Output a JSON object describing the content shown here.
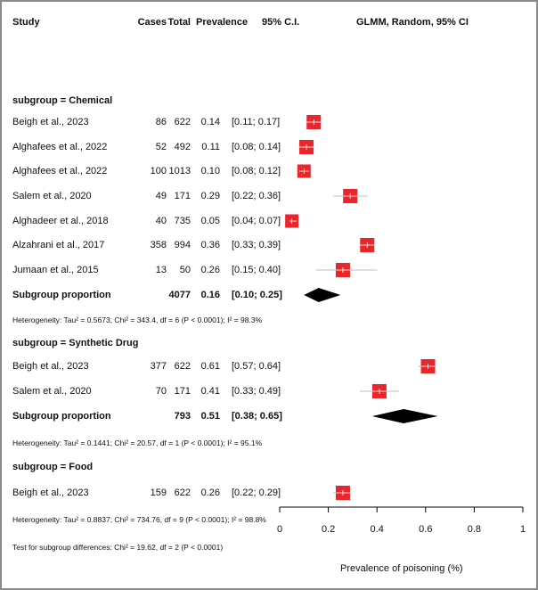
{
  "chart_data": {
    "type": "forest",
    "columns": [
      "Study",
      "Cases",
      "Total",
      "Prevalence",
      "95% C.I.",
      "GLMM, Random, 95% CI"
    ],
    "xlabel": "Prevalence of poisoning (%)",
    "xlim": [
      0,
      1
    ],
    "xticks": [
      "0",
      "0.2",
      "0.4",
      "0.6",
      "0.8",
      "1"
    ],
    "marker_color": "#e8262b",
    "subgroups": [
      {
        "label": "subgroup = Chemical",
        "studies": [
          {
            "study": "Beigh et al., 2023",
            "cases": "86",
            "total": "622",
            "prev": 0.14,
            "ci_text": "[0.11; 0.17]",
            "lo": 0.11,
            "hi": 0.17
          },
          {
            "study": "Alghafees et al., 2022",
            "cases": "52",
            "total": "492",
            "prev": 0.11,
            "ci_text": "[0.08; 0.14]",
            "lo": 0.08,
            "hi": 0.14
          },
          {
            "study": "Alghafees et al., 2022",
            "cases": "100",
            "total": "1013",
            "prev": 0.1,
            "ci_text": "[0.08; 0.12]",
            "lo": 0.08,
            "hi": 0.12
          },
          {
            "study": "Salem et al., 2020",
            "cases": "49",
            "total": "171",
            "prev": 0.29,
            "ci_text": "[0.22; 0.36]",
            "lo": 0.22,
            "hi": 0.36
          },
          {
            "study": "Alghadeer et al., 2018",
            "cases": "40",
            "total": "735",
            "prev": 0.05,
            "ci_text": "[0.04; 0.07]",
            "lo": 0.04,
            "hi": 0.07
          },
          {
            "study": "Alzahrani et al., 2017",
            "cases": "358",
            "total": "994",
            "prev": 0.36,
            "ci_text": "[0.33; 0.39]",
            "lo": 0.33,
            "hi": 0.39
          },
          {
            "study": "Jumaan et al., 2015",
            "cases": "13",
            "total": "50",
            "prev": 0.26,
            "ci_text": "[0.15; 0.40]",
            "lo": 0.15,
            "hi": 0.4
          }
        ],
        "pooled": {
          "label": "Subgroup proportion",
          "total": "4077",
          "prev": 0.16,
          "ci_text": "[0.10; 0.25]",
          "lo": 0.1,
          "hi": 0.25
        },
        "heterogeneity": "Heterogeneity: Tau² = 0.5673; Chi² = 343.4, df = 6 (P < 0.0001); I² = 98.3%"
      },
      {
        "label": "subgroup = Synthetic Drug",
        "studies": [
          {
            "study": "Beigh et al., 2023",
            "cases": "377",
            "total": "622",
            "prev": 0.61,
            "ci_text": "[0.57; 0.64]",
            "lo": 0.57,
            "hi": 0.64
          },
          {
            "study": "Salem et al., 2020",
            "cases": "70",
            "total": "171",
            "prev": 0.41,
            "ci_text": "[0.33; 0.49]",
            "lo": 0.33,
            "hi": 0.49
          }
        ],
        "pooled": {
          "label": "Subgroup proportion",
          "total": "793",
          "prev": 0.51,
          "ci_text": "[0.38; 0.65]",
          "lo": 0.38,
          "hi": 0.65
        },
        "heterogeneity": "Heterogeneity: Tau² = 0.1441; Chi² = 20.57, df = 1 (P < 0.0001); I² = 95.1%"
      },
      {
        "label": "subgroup = Food",
        "studies": [
          {
            "study": "Beigh et al., 2023",
            "cases": "159",
            "total": "622",
            "prev": 0.26,
            "ci_text": "[0.22; 0.29]",
            "lo": 0.22,
            "hi": 0.29
          }
        ]
      }
    ],
    "overall_heterogeneity": "Heterogeneity: Tau² = 0.8837; Chi² = 734.76, df = 9 (P < 0.0001); I² = 98.8%",
    "subgroup_test": "Test for subgroup differences: Chi² = 19.62, df = 2 (P < 0.0001)"
  }
}
